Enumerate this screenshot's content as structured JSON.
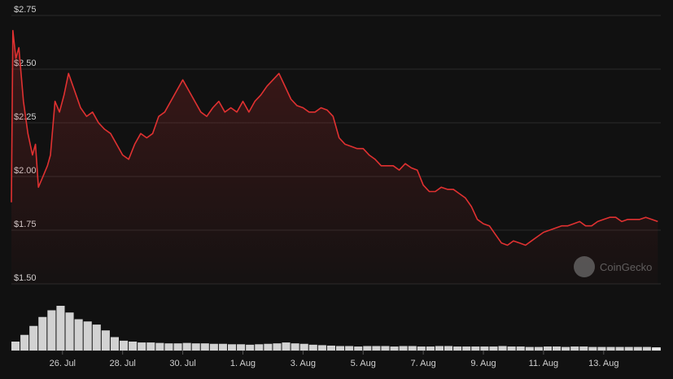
{
  "colors": {
    "background": "#111111",
    "grid": "#2b2b2b",
    "line": "#e03131",
    "fill_top": "rgba(224,49,49,0.22)",
    "fill_bottom": "rgba(224,49,49,0.02)",
    "text": "#d0d0d0",
    "volume": "#e8e8e8",
    "watermark": "#9a9a9a"
  },
  "watermark": {
    "text": "CoinGecko",
    "icon": "coingecko-logo-icon"
  },
  "chart_data": {
    "type": "area",
    "title": "",
    "xlabel": "",
    "ylabel": "",
    "ylim": [
      1.5,
      2.75
    ],
    "yticks": [
      1.5,
      1.75,
      2.0,
      2.25,
      2.5,
      2.75
    ],
    "ytick_labels": [
      "$1.50",
      "$1.75",
      "$2.00",
      "$2.25",
      "$2.50",
      "$2.75"
    ],
    "xlim": [
      24.3,
      45.9
    ],
    "xticks": [
      26,
      28,
      30,
      32,
      34,
      36,
      38,
      40,
      42,
      44
    ],
    "xtick_labels": [
      "26. Jul",
      "28. Jul",
      "30. Jul",
      "1. Aug",
      "3. Aug",
      "5. Aug",
      "7. Aug",
      "9. Aug",
      "11. Aug",
      "13. Aug"
    ],
    "grid": true,
    "legend": "none",
    "series": [
      {
        "x": [
          24.3,
          24.35,
          24.45,
          24.55,
          24.7,
          24.85,
          25.0,
          25.1,
          25.2,
          25.35,
          25.5,
          25.6,
          25.75,
          25.9,
          26.05,
          26.2,
          26.4,
          26.6,
          26.8,
          27.0,
          27.2,
          27.4,
          27.6,
          27.8,
          28.0,
          28.2,
          28.4,
          28.6,
          28.8,
          29.0,
          29.2,
          29.4,
          29.6,
          29.8,
          30.0,
          30.2,
          30.4,
          30.6,
          30.8,
          31.0,
          31.2,
          31.4,
          31.6,
          31.8,
          32.0,
          32.2,
          32.4,
          32.6,
          32.8,
          33.0,
          33.2,
          33.4,
          33.6,
          33.8,
          34.0,
          34.2,
          34.4,
          34.6,
          34.8,
          35.0,
          35.2,
          35.4,
          35.6,
          35.8,
          36.0,
          36.2,
          36.4,
          36.6,
          36.8,
          37.0,
          37.2,
          37.4,
          37.6,
          37.8,
          38.0,
          38.2,
          38.4,
          38.6,
          38.8,
          39.0,
          39.2,
          39.4,
          39.6,
          39.8,
          40.0,
          40.2,
          40.4,
          40.6,
          40.8,
          41.0,
          41.2,
          41.4,
          41.6,
          41.8,
          42.0,
          42.2,
          42.4,
          42.6,
          42.8,
          43.0,
          43.2,
          43.4,
          43.6,
          43.8,
          44.0,
          44.2,
          44.4,
          44.6,
          44.8,
          45.0,
          45.2,
          45.4,
          45.6,
          45.8
        ],
        "values": [
          1.88,
          2.68,
          2.55,
          2.6,
          2.35,
          2.2,
          2.1,
          2.15,
          1.95,
          2.0,
          2.05,
          2.1,
          2.35,
          2.3,
          2.38,
          2.48,
          2.4,
          2.32,
          2.28,
          2.3,
          2.25,
          2.22,
          2.2,
          2.15,
          2.1,
          2.08,
          2.15,
          2.2,
          2.18,
          2.2,
          2.28,
          2.3,
          2.35,
          2.4,
          2.45,
          2.4,
          2.35,
          2.3,
          2.28,
          2.32,
          2.35,
          2.3,
          2.32,
          2.3,
          2.35,
          2.3,
          2.35,
          2.38,
          2.42,
          2.45,
          2.48,
          2.42,
          2.36,
          2.33,
          2.32,
          2.3,
          2.3,
          2.32,
          2.31,
          2.28,
          2.18,
          2.15,
          2.14,
          2.13,
          2.13,
          2.1,
          2.08,
          2.05,
          2.05,
          2.05,
          2.03,
          2.06,
          2.04,
          2.03,
          1.96,
          1.93,
          1.93,
          1.95,
          1.94,
          1.94,
          1.92,
          1.9,
          1.86,
          1.8,
          1.78,
          1.77,
          1.73,
          1.69,
          1.68,
          1.7,
          1.69,
          1.68,
          1.7,
          1.72,
          1.74,
          1.75,
          1.76,
          1.77,
          1.77,
          1.78,
          1.79,
          1.77,
          1.77,
          1.79,
          1.8,
          1.81,
          1.81,
          1.79,
          1.8,
          1.8,
          1.8,
          1.81,
          1.8,
          1.79
        ]
      }
    ],
    "volume": {
      "x": [
        24.3,
        24.6,
        24.9,
        25.2,
        25.5,
        25.8,
        26.1,
        26.4,
        26.7,
        27.0,
        27.3,
        27.6,
        27.9,
        28.2,
        28.5,
        28.8,
        29.1,
        29.4,
        29.7,
        30.0,
        30.3,
        30.6,
        30.9,
        31.2,
        31.5,
        31.8,
        32.1,
        32.4,
        32.7,
        33.0,
        33.3,
        33.6,
        33.9,
        34.2,
        34.5,
        34.8,
        35.1,
        35.4,
        35.7,
        36.0,
        36.3,
        36.6,
        36.9,
        37.2,
        37.5,
        37.8,
        38.1,
        38.4,
        38.7,
        39.0,
        39.3,
        39.6,
        39.9,
        40.2,
        40.5,
        40.8,
        41.1,
        41.4,
        41.7,
        42.0,
        42.3,
        42.6,
        42.9,
        43.2,
        43.5,
        43.8,
        44.1,
        44.4,
        44.7,
        45.0,
        45.3,
        45.6,
        45.8
      ],
      "values": [
        0.2,
        0.35,
        0.55,
        0.75,
        0.9,
        1.0,
        0.85,
        0.7,
        0.65,
        0.58,
        0.45,
        0.3,
        0.22,
        0.2,
        0.18,
        0.18,
        0.17,
        0.16,
        0.16,
        0.17,
        0.16,
        0.16,
        0.15,
        0.15,
        0.14,
        0.14,
        0.13,
        0.14,
        0.15,
        0.16,
        0.18,
        0.16,
        0.15,
        0.13,
        0.12,
        0.11,
        0.1,
        0.1,
        0.09,
        0.1,
        0.1,
        0.1,
        0.09,
        0.1,
        0.1,
        0.09,
        0.09,
        0.1,
        0.1,
        0.09,
        0.09,
        0.09,
        0.09,
        0.09,
        0.1,
        0.09,
        0.09,
        0.08,
        0.08,
        0.09,
        0.09,
        0.08,
        0.09,
        0.09,
        0.08,
        0.08,
        0.08,
        0.08,
        0.08,
        0.08,
        0.08,
        0.07,
        0.07
      ]
    }
  }
}
